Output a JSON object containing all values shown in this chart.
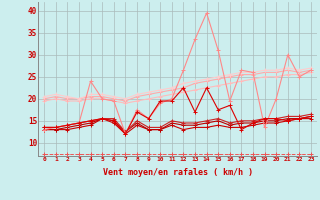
{
  "x": [
    0,
    1,
    2,
    3,
    4,
    5,
    6,
    7,
    8,
    9,
    10,
    11,
    12,
    13,
    14,
    15,
    16,
    17,
    18,
    19,
    20,
    21,
    22,
    23
  ],
  "line_pink1": [
    19.5,
    20.0,
    19.5,
    19.5,
    20.0,
    20.0,
    19.5,
    19.0,
    19.5,
    20.0,
    20.5,
    21.0,
    21.5,
    22.0,
    22.5,
    23.0,
    23.5,
    24.0,
    24.5,
    25.0,
    25.0,
    25.5,
    25.5,
    26.0
  ],
  "line_pink2": [
    20.0,
    20.5,
    20.0,
    20.0,
    20.5,
    20.5,
    20.0,
    19.5,
    20.5,
    21.0,
    21.5,
    22.0,
    22.5,
    23.5,
    24.0,
    24.5,
    25.0,
    25.5,
    25.5,
    26.0,
    26.0,
    26.5,
    26.0,
    26.5
  ],
  "line_pink3": [
    20.5,
    21.0,
    20.5,
    20.0,
    21.0,
    21.0,
    20.5,
    20.0,
    21.0,
    21.5,
    22.0,
    22.5,
    23.5,
    24.0,
    24.5,
    25.0,
    25.5,
    26.0,
    26.0,
    26.5,
    26.5,
    27.0,
    26.5,
    27.0
  ],
  "line_red1": [
    13.0,
    13.0,
    13.0,
    13.5,
    14.0,
    15.5,
    14.5,
    12.0,
    14.0,
    13.0,
    13.0,
    14.0,
    13.0,
    13.5,
    13.5,
    14.0,
    13.5,
    13.5,
    14.0,
    14.5,
    14.5,
    15.0,
    15.5,
    15.5
  ],
  "line_red2": [
    13.0,
    13.0,
    13.5,
    14.0,
    14.5,
    15.5,
    15.0,
    12.5,
    14.5,
    13.0,
    13.0,
    14.5,
    14.0,
    14.0,
    14.5,
    15.0,
    14.0,
    14.5,
    14.5,
    15.0,
    15.0,
    15.5,
    15.5,
    16.0
  ],
  "line_red3": [
    13.5,
    13.5,
    14.0,
    14.5,
    15.0,
    15.5,
    15.5,
    12.5,
    15.0,
    13.5,
    13.5,
    15.0,
    14.5,
    14.5,
    15.0,
    15.5,
    14.5,
    15.0,
    15.0,
    15.5,
    15.5,
    16.0,
    16.0,
    16.5
  ],
  "line_pink_jagged": [
    13.0,
    13.5,
    14.0,
    14.5,
    24.0,
    20.0,
    19.5,
    12.0,
    17.5,
    15.5,
    19.0,
    20.0,
    26.5,
    33.5,
    39.5,
    31.0,
    19.5,
    26.5,
    26.0,
    13.5,
    20.0,
    30.0,
    25.0,
    26.5
  ],
  "line_red_jagged": [
    13.5,
    13.5,
    14.0,
    14.5,
    15.0,
    15.5,
    15.0,
    12.0,
    17.0,
    15.5,
    19.5,
    19.5,
    22.5,
    17.0,
    22.5,
    17.5,
    18.5,
    13.0,
    14.5,
    15.5,
    15.5,
    15.0,
    15.5,
    16.0
  ],
  "line_dashed": [
    7.5,
    7.5,
    7.5,
    7.5,
    7.5,
    7.5,
    7.5,
    7.5,
    7.5,
    7.5,
    7.5,
    7.5,
    7.5,
    7.5,
    7.5,
    7.5,
    7.5,
    7.5,
    7.5,
    7.5,
    7.5,
    7.5,
    7.5,
    7.5
  ],
  "background_color": "#cceeee",
  "grid_color": "#aabbbb",
  "xlabel": "Vent moyen/en rafales ( km/h )",
  "ylim": [
    7,
    42
  ],
  "yticks": [
    10,
    15,
    20,
    25,
    30,
    35,
    40
  ],
  "xlim": [
    -0.5,
    23.5
  ]
}
